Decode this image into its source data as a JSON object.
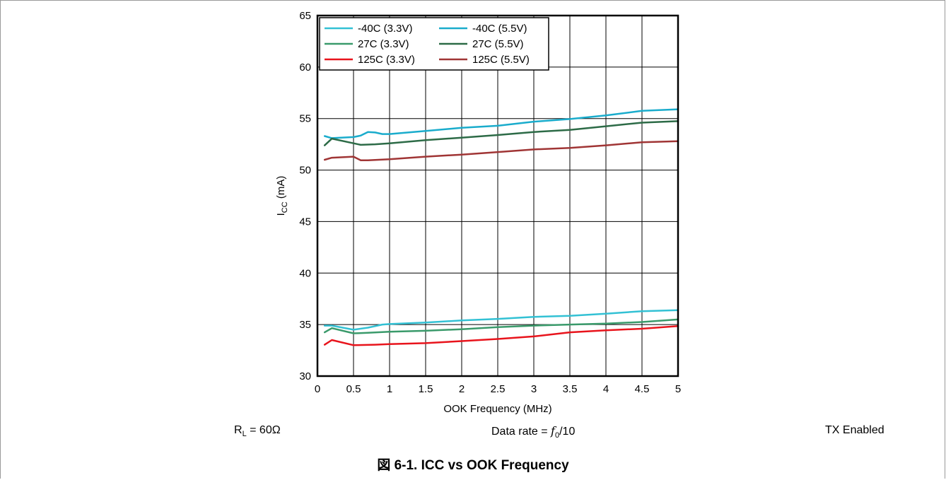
{
  "chart_data": {
    "type": "line",
    "title": "",
    "xlabel": "OOK Frequency (MHz)",
    "ylabel_main": "I",
    "ylabel_sub": "CC",
    "ylabel_unit": " (mA)",
    "xlim": [
      0,
      5
    ],
    "ylim": [
      30,
      65
    ],
    "x_ticks": [
      0,
      0.5,
      1,
      1.5,
      2,
      2.5,
      3,
      3.5,
      4,
      4.5,
      5
    ],
    "y_ticks": [
      30,
      35,
      40,
      45,
      50,
      55,
      60,
      65
    ],
    "grid": true,
    "legend_position": "top-left",
    "series": [
      {
        "name": "-40C (3.3V)",
        "color": "#33c1d4",
        "points": [
          [
            0.1,
            34.9
          ],
          [
            0.2,
            34.9
          ],
          [
            0.5,
            34.5
          ],
          [
            0.7,
            34.7
          ],
          [
            0.9,
            35.0
          ],
          [
            1,
            35.05
          ],
          [
            1.5,
            35.2
          ],
          [
            2,
            35.4
          ],
          [
            2.5,
            35.55
          ],
          [
            3,
            35.75
          ],
          [
            3.5,
            35.85
          ],
          [
            4,
            36.05
          ],
          [
            4.5,
            36.3
          ],
          [
            5,
            36.4
          ]
        ]
      },
      {
        "name": "-40C (5.5V)",
        "color": "#1aaccc",
        "points": [
          [
            0.1,
            53.3
          ],
          [
            0.2,
            53.1
          ],
          [
            0.5,
            53.2
          ],
          [
            0.6,
            53.35
          ],
          [
            0.7,
            53.7
          ],
          [
            0.8,
            53.65
          ],
          [
            0.9,
            53.5
          ],
          [
            1,
            53.5
          ],
          [
            1.5,
            53.8
          ],
          [
            2,
            54.1
          ],
          [
            2.5,
            54.3
          ],
          [
            3,
            54.7
          ],
          [
            3.5,
            54.95
          ],
          [
            4,
            55.3
          ],
          [
            4.5,
            55.75
          ],
          [
            5,
            55.9
          ]
        ]
      },
      {
        "name": "27C (3.3V)",
        "color": "#3a9a6b",
        "points": [
          [
            0.1,
            34.25
          ],
          [
            0.2,
            34.65
          ],
          [
            0.5,
            34.15
          ],
          [
            0.7,
            34.2
          ],
          [
            1,
            34.3
          ],
          [
            1.5,
            34.4
          ],
          [
            2,
            34.55
          ],
          [
            2.5,
            34.75
          ],
          [
            3,
            34.9
          ],
          [
            3.5,
            35.0
          ],
          [
            4,
            35.1
          ],
          [
            4.5,
            35.25
          ],
          [
            5,
            35.5
          ]
        ]
      },
      {
        "name": "27C (5.5V)",
        "color": "#2d6b47",
        "points": [
          [
            0.1,
            52.4
          ],
          [
            0.2,
            53.05
          ],
          [
            0.5,
            52.6
          ],
          [
            0.6,
            52.45
          ],
          [
            0.8,
            52.5
          ],
          [
            1,
            52.6
          ],
          [
            1.5,
            52.9
          ],
          [
            2,
            53.15
          ],
          [
            2.5,
            53.4
          ],
          [
            3,
            53.7
          ],
          [
            3.5,
            53.9
          ],
          [
            4,
            54.25
          ],
          [
            4.5,
            54.6
          ],
          [
            5,
            54.75
          ]
        ]
      },
      {
        "name": "125C (3.3V)",
        "color": "#e8141c",
        "points": [
          [
            0.1,
            33.05
          ],
          [
            0.2,
            33.5
          ],
          [
            0.5,
            33.0
          ],
          [
            0.8,
            33.05
          ],
          [
            1,
            33.1
          ],
          [
            1.5,
            33.2
          ],
          [
            2,
            33.4
          ],
          [
            2.5,
            33.6
          ],
          [
            3,
            33.85
          ],
          [
            3.5,
            34.25
          ],
          [
            4,
            34.45
          ],
          [
            4.5,
            34.6
          ],
          [
            5,
            34.85
          ]
        ]
      },
      {
        "name": "125C (5.5V)",
        "color": "#a03535",
        "points": [
          [
            0.1,
            51.0
          ],
          [
            0.2,
            51.2
          ],
          [
            0.5,
            51.3
          ],
          [
            0.6,
            50.95
          ],
          [
            0.7,
            50.95
          ],
          [
            1,
            51.05
          ],
          [
            1.5,
            51.3
          ],
          [
            2,
            51.5
          ],
          [
            2.5,
            51.75
          ],
          [
            3,
            52.0
          ],
          [
            3.5,
            52.15
          ],
          [
            4,
            52.4
          ],
          [
            4.5,
            52.7
          ],
          [
            5,
            52.8
          ]
        ]
      }
    ]
  },
  "notes": {
    "rl_main": "R",
    "rl_sub": "L",
    "rl_rest": " = 60Ω",
    "data_rate_prefix": "Data rate = ",
    "data_rate_f": "f",
    "data_rate_sub": "0",
    "data_rate_suffix": "/10",
    "tx": "TX Enabled"
  },
  "caption": "図 6-1. ICC vs OOK Frequency"
}
